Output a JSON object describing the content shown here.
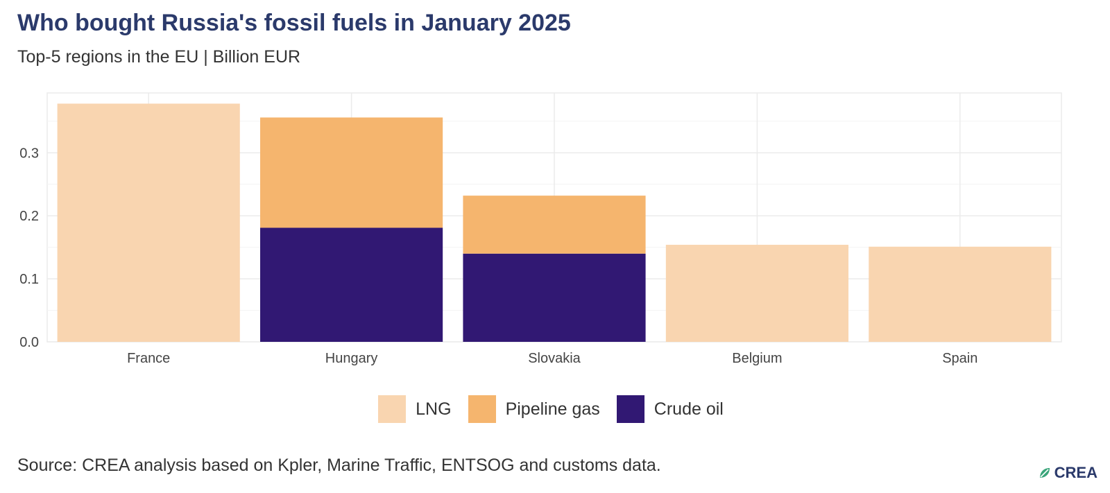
{
  "title": "Who bought Russia's fossil fuels in January 2025",
  "subtitle": "Top-5 regions in the EU | Billion EUR",
  "source": "Source: CREA analysis based on Kpler, Marine Traffic, ENTSOG and customs data.",
  "logo": {
    "text": "CREA",
    "icon": "crea-leaf-icon"
  },
  "colors": {
    "LNG": "#f9d5b0",
    "Pipeline gas": "#f5b56e",
    "Crude oil": "#311873",
    "grid": "#ebebeb",
    "title": "#2b3a6b"
  },
  "chart_data": {
    "type": "bar",
    "stacked": true,
    "categories": [
      "France",
      "Hungary",
      "Slovakia",
      "Belgium",
      "Spain"
    ],
    "series": [
      {
        "name": "Crude oil",
        "values": [
          0,
          0.181,
          0.14,
          0,
          0
        ]
      },
      {
        "name": "Pipeline gas",
        "values": [
          0,
          0.175,
          0.092,
          0,
          0
        ]
      },
      {
        "name": "LNG",
        "values": [
          0.378,
          0,
          0,
          0.154,
          0.151
        ]
      }
    ],
    "legend_order": [
      "LNG",
      "Pipeline gas",
      "Crude oil"
    ],
    "yticks": [
      0.0,
      0.1,
      0.2,
      0.3
    ],
    "ytick_labels": [
      "0.0",
      "0.1",
      "0.2",
      "0.3"
    ],
    "ylim": [
      0,
      0.395
    ],
    "grid": true,
    "legend_position": "bottom",
    "xlabel": "",
    "ylabel": ""
  }
}
